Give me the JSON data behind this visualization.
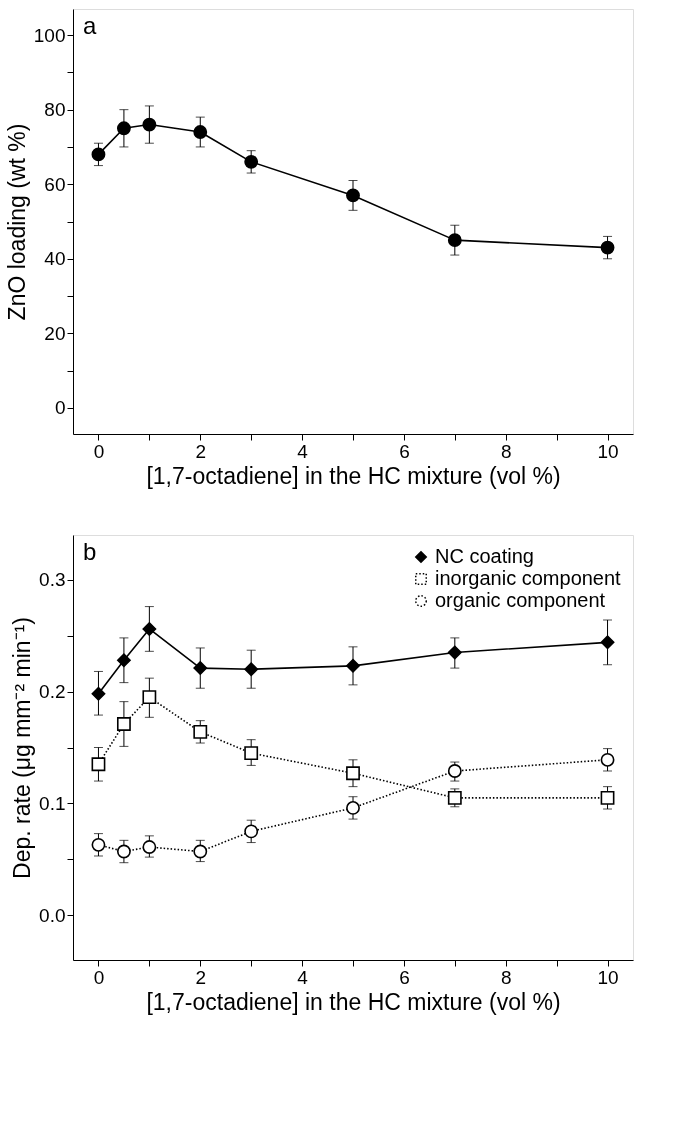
{
  "chart_data": [
    {
      "type": "line",
      "xlabel": "[1,7-octadiene] in the HC mixture (vol %)",
      "ylabel": "ZnO loading (wt %)",
      "annotations": [
        "a"
      ],
      "x": [
        0,
        0.5,
        1,
        2,
        3,
        5,
        7,
        10
      ],
      "series": [
        {
          "color": "#000000",
          "marker": "circle",
          "line_style": "solid",
          "values": [
            68,
            75,
            76,
            74,
            66,
            57,
            45,
            43
          ],
          "errors": [
            [
              65,
              71
            ],
            [
              70,
              80
            ],
            [
              71,
              81
            ],
            [
              70,
              78
            ],
            [
              63,
              69
            ],
            [
              53,
              61
            ],
            [
              41,
              49
            ],
            [
              40,
              46
            ]
          ]
        }
      ],
      "xlim": [
        -0.5,
        10.5
      ],
      "ylim": [
        -7,
        107
      ],
      "xticks": [
        0,
        {
          "value": 1,
          "label": null
        },
        2,
        {
          "value": 3,
          "label": null
        },
        4,
        {
          "value": 5,
          "label": null
        },
        6,
        {
          "value": 7,
          "label": null
        },
        8,
        {
          "value": 9,
          "label": null
        },
        10
      ],
      "yticks": [
        0,
        {
          "value": 10,
          "label": null
        },
        20,
        {
          "value": 30,
          "label": null
        },
        40,
        {
          "value": 50,
          "label": null
        },
        60,
        {
          "value": 70,
          "label": null
        },
        80,
        {
          "value": 90,
          "label": null
        },
        100
      ],
      "grid": false,
      "legend": false
    },
    {
      "type": "line",
      "xlabel": "[1,7-octadiene] in the HC mixture (vol %)",
      "ylabel": "Dep. rate (μg mm⁻² min⁻¹)",
      "annotations": [
        "b"
      ],
      "x": [
        0,
        0.5,
        1,
        2,
        3,
        5,
        7,
        10
      ],
      "series": [
        {
          "name": "NC coating",
          "color": "#000000",
          "marker": "diamond",
          "line_style": "solid",
          "values": [
            0.198,
            0.228,
            0.256,
            0.221,
            0.22,
            0.223,
            0.235,
            0.244
          ],
          "errors": [
            [
              0.179,
              0.218
            ],
            [
              0.208,
              0.248
            ],
            [
              0.236,
              0.276
            ],
            [
              0.203,
              0.239
            ],
            [
              0.203,
              0.237
            ],
            [
              0.206,
              0.24
            ],
            [
              0.221,
              0.248
            ],
            [
              0.224,
              0.264
            ]
          ]
        },
        {
          "name": "inorganic component",
          "color": "#000000",
          "marker": "square",
          "line_style": "dotted",
          "values": [
            0.135,
            0.171,
            0.195,
            0.164,
            0.145,
            0.127,
            0.105,
            0.105
          ],
          "errors": [
            [
              0.12,
              0.15
            ],
            [
              0.151,
              0.191
            ],
            [
              0.177,
              0.212
            ],
            [
              0.154,
              0.174
            ],
            [
              0.134,
              0.157
            ],
            [
              0.115,
              0.139
            ],
            [
              0.097,
              0.113
            ],
            [
              0.095,
              0.115
            ]
          ]
        },
        {
          "name": "organic component",
          "color": "#000000",
          "marker": "circle",
          "line_style": "dotted",
          "values": [
            0.063,
            0.057,
            0.061,
            0.057,
            0.075,
            0.096,
            0.129,
            0.139
          ],
          "errors": [
            [
              0.053,
              0.073
            ],
            [
              0.047,
              0.067
            ],
            [
              0.052,
              0.071
            ],
            [
              0.048,
              0.067
            ],
            [
              0.065,
              0.085
            ],
            [
              0.086,
              0.106
            ],
            [
              0.12,
              0.137
            ],
            [
              0.129,
              0.149
            ]
          ]
        }
      ],
      "xlim": [
        -0.5,
        10.5
      ],
      "ylim": [
        -0.04,
        0.34
      ],
      "xticks": [
        0,
        {
          "value": 1,
          "label": null
        },
        2,
        {
          "value": 3,
          "label": null
        },
        4,
        {
          "value": 5,
          "label": null
        },
        6,
        {
          "value": 7,
          "label": null
        },
        8,
        {
          "value": 9,
          "label": null
        },
        10
      ],
      "yticks": [
        {
          "value": 0,
          "label": "0.0"
        },
        {
          "value": 0.05,
          "label": null
        },
        0.1,
        {
          "value": 0.15,
          "label": null
        },
        0.2,
        {
          "value": 0.25,
          "label": null
        },
        0.3
      ],
      "grid": false,
      "legend": "top right"
    }
  ]
}
